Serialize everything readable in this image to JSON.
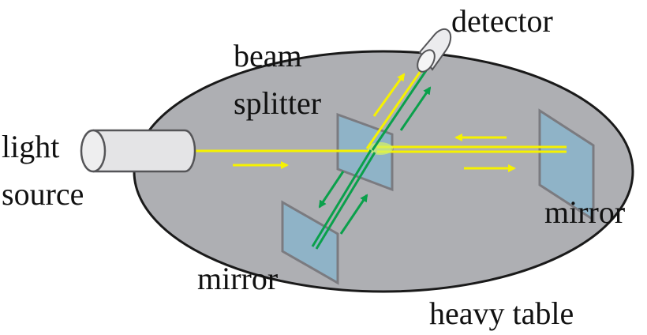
{
  "labels": {
    "light": "light",
    "source": "source",
    "beam": "beam",
    "splitter": "splitter",
    "detector": "detector",
    "mirror_right": "mirror",
    "mirror_left": "mirror",
    "heavy_table": "heavy table"
  },
  "colors": {
    "table_fill": "#aeafb3",
    "table_stroke": "#1a1a1a",
    "beam_yellow": "#f6f200",
    "beam_green": "#0aa04b",
    "mirror_fill": "#8fb3c7",
    "mirror_stroke": "#7b7b80",
    "source_fill": "#e4e4e6"
  }
}
